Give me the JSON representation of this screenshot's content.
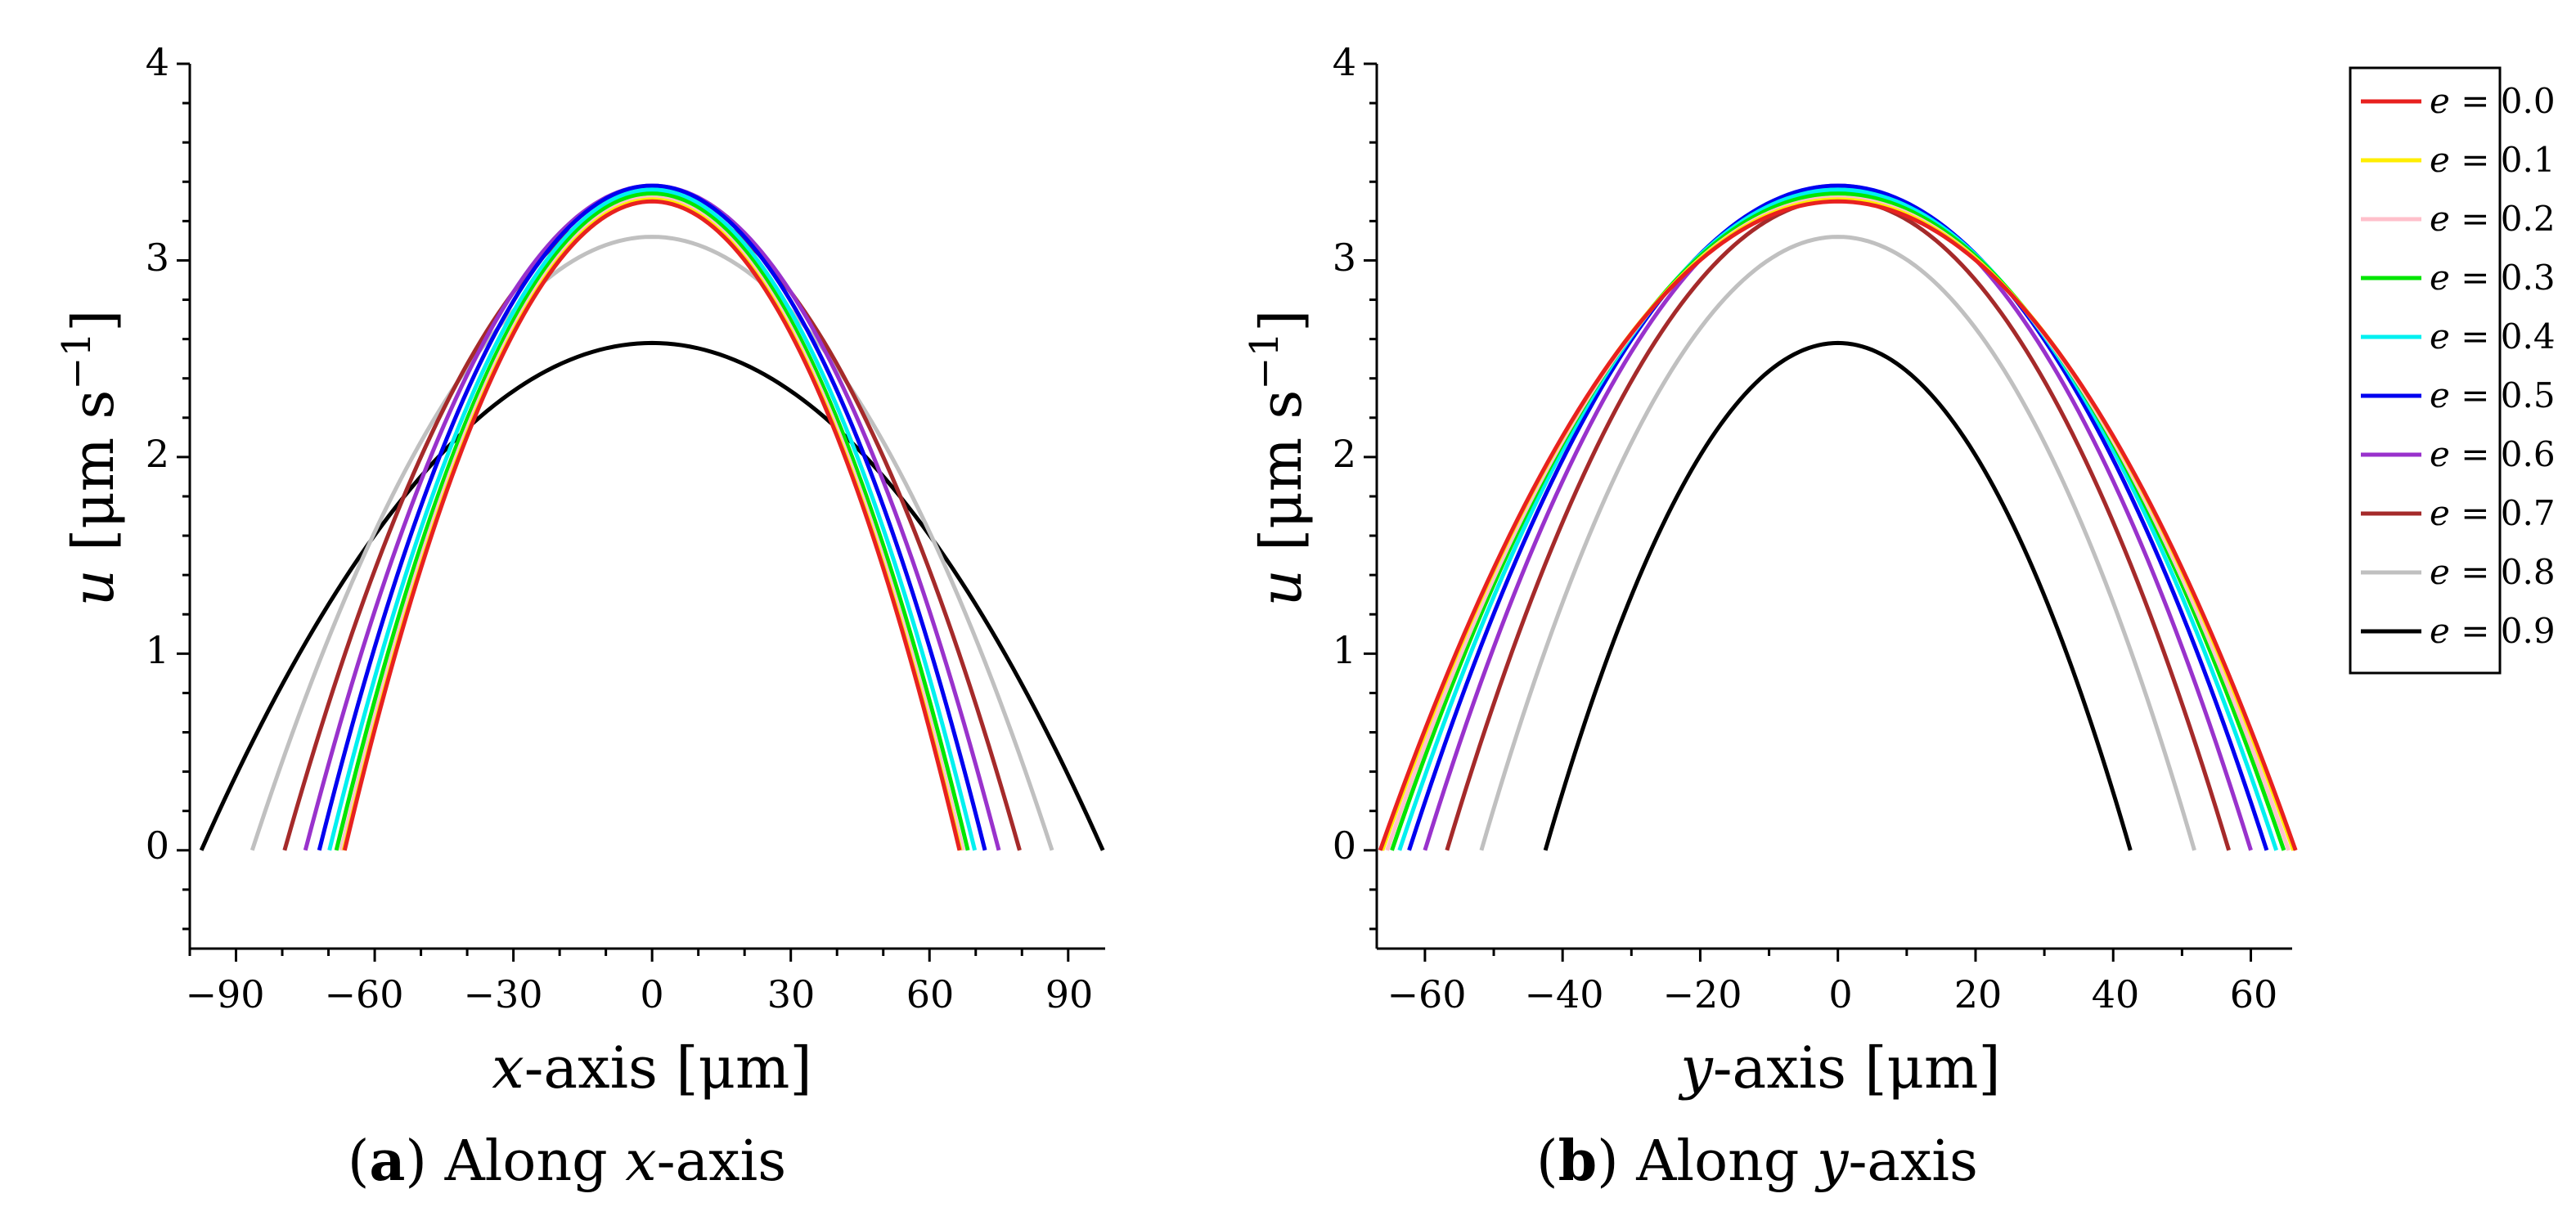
{
  "chart_data": [
    {
      "type": "line",
      "id": "a",
      "title": "",
      "xlabel": {
        "var": "x",
        "rest": "-axis [μm]"
      },
      "ylabel": {
        "var": "u",
        "rest": "[μm s",
        "sup": "−1",
        "close": "]"
      },
      "xlim": [
        -100,
        98
      ],
      "ylim": [
        -0.5,
        4
      ],
      "xticks": [
        -90,
        -60,
        -30,
        0,
        30,
        60,
        90
      ],
      "xtick_labels": [
        "−90",
        "−60",
        "−30",
        "0",
        "30",
        "60",
        "90"
      ],
      "yticks": [
        0,
        1,
        2,
        3,
        4
      ],
      "ytick_labels": [
        "0",
        "1",
        "2",
        "3",
        "4"
      ],
      "caption": {
        "letter": "a",
        "text": "Along ",
        "var": "x",
        "suffix": "-axis"
      },
      "series": [
        {
          "name": "e = 0.0",
          "peak": 3.3,
          "half_width": 66.5
        },
        {
          "name": "e = 0.1",
          "peak": 3.31,
          "half_width": 66.7
        },
        {
          "name": "e = 0.2",
          "peak": 3.32,
          "half_width": 67.3
        },
        {
          "name": "e = 0.3",
          "peak": 3.34,
          "half_width": 68.3
        },
        {
          "name": "e = 0.4",
          "peak": 3.36,
          "half_width": 69.8
        },
        {
          "name": "e = 0.5",
          "peak": 3.38,
          "half_width": 72.0
        },
        {
          "name": "e = 0.6",
          "peak": 3.38,
          "half_width": 75.0
        },
        {
          "name": "e = 0.7",
          "peak": 3.31,
          "half_width": 79.5
        },
        {
          "name": "e = 0.8",
          "peak": 3.12,
          "half_width": 86.5
        },
        {
          "name": "e = 0.9",
          "peak": 2.58,
          "half_width": 97.5
        }
      ]
    },
    {
      "type": "line",
      "id": "b",
      "title": "",
      "xlabel": {
        "var": "y",
        "rest": "-axis [μm]"
      },
      "ylabel": {
        "var": "u",
        "rest": "[μm s",
        "sup": "−1",
        "close": "]"
      },
      "xlim": [
        -67,
        66
      ],
      "ylim": [
        -0.5,
        4
      ],
      "xticks": [
        -60,
        -40,
        -20,
        0,
        20,
        40,
        60
      ],
      "xtick_labels": [
        "−60",
        "−40",
        "−20",
        "0",
        "20",
        "40",
        "60"
      ],
      "yticks": [
        0,
        1,
        2,
        3,
        4
      ],
      "ytick_labels": [
        "0",
        "1",
        "2",
        "3",
        "4"
      ],
      "caption": {
        "letter": "b",
        "text": "Along ",
        "var": "y",
        "suffix": "-axis"
      },
      "series": [
        {
          "name": "e = 0.0",
          "peak": 3.3,
          "half_width": 66.5
        },
        {
          "name": "e = 0.1",
          "peak": 3.31,
          "half_width": 66.2
        },
        {
          "name": "e = 0.2",
          "peak": 3.32,
          "half_width": 65.5
        },
        {
          "name": "e = 0.3",
          "peak": 3.34,
          "half_width": 64.8
        },
        {
          "name": "e = 0.4",
          "peak": 3.36,
          "half_width": 63.7
        },
        {
          "name": "e = 0.5",
          "peak": 3.38,
          "half_width": 62.3
        },
        {
          "name": "e = 0.6",
          "peak": 3.38,
          "half_width": 60.0
        },
        {
          "name": "e = 0.7",
          "peak": 3.31,
          "half_width": 56.8
        },
        {
          "name": "e = 0.8",
          "peak": 3.12,
          "half_width": 51.8
        },
        {
          "name": "e = 0.9",
          "peak": 2.58,
          "half_width": 42.5
        }
      ]
    }
  ],
  "legend": {
    "var": "e",
    "items": [
      {
        "label": "= 0.0",
        "color": "#e8211f"
      },
      {
        "label": "= 0.1",
        "color": "#ffee00"
      },
      {
        "label": "= 0.2",
        "color": "#ffc0cb"
      },
      {
        "label": "= 0.3",
        "color": "#00e600"
      },
      {
        "label": "= 0.4",
        "color": "#00f0f0"
      },
      {
        "label": "= 0.5",
        "color": "#0000f0"
      },
      {
        "label": "= 0.6",
        "color": "#9932cc"
      },
      {
        "label": "= 0.7",
        "color": "#a52a2a"
      },
      {
        "label": "= 0.8",
        "color": "#c0c0c0"
      },
      {
        "label": "= 0.9",
        "color": "#000000"
      }
    ]
  },
  "extra_curve_color": "#ff8c00"
}
